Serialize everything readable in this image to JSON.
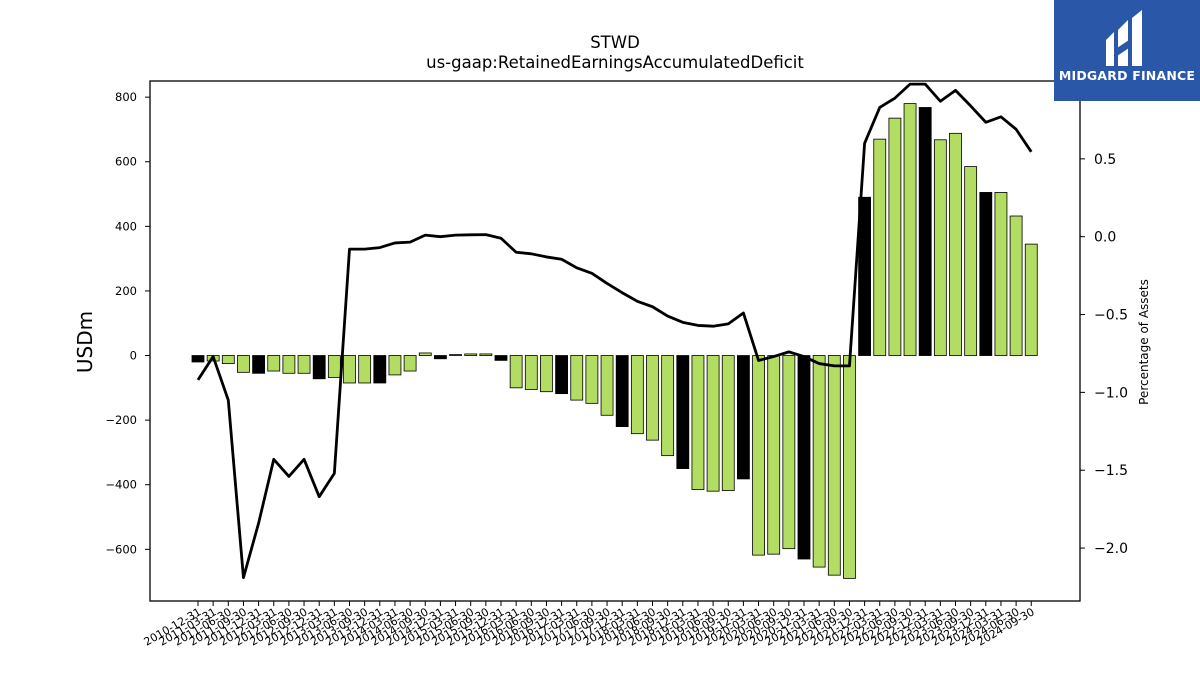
{
  "chart_data": {
    "type": "bar",
    "title": "STWD",
    "subtitle": "us-gaap:RetainedEarningsAccumulatedDeficit",
    "ylabel": "USDm",
    "y2label": "Percentage of Assets",
    "ylim": [
      -760,
      850
    ],
    "y2lim": [
      -2.34,
      1.0
    ],
    "yticks": [
      -600,
      -400,
      -200,
      0,
      200,
      400,
      600,
      800
    ],
    "y2ticks": [
      -2.0,
      -1.5,
      -1.0,
      -0.5,
      0.0,
      0.5,
      1.0
    ],
    "yticklabels": [
      "−600",
      "−400",
      "−200",
      "0",
      "200",
      "400",
      "600",
      "800"
    ],
    "y2ticklabels": [
      "−2.0",
      "−1.5",
      "−1.0",
      "−0.5",
      "0.0",
      "0.5",
      "1.0"
    ],
    "colors": {
      "bar_green": "#b2dc62",
      "bar_black": "#000000",
      "line": "#000000"
    },
    "categories": [
      "2010-12-31",
      "2011-03-31",
      "2011-06-30",
      "2011-09-30",
      "2011-12-31",
      "2012-03-31",
      "2012-06-30",
      "2012-09-30",
      "2012-12-31",
      "2013-03-31",
      "2013-06-30",
      "2013-09-30",
      "2013-12-31",
      "2014-03-31",
      "2014-06-30",
      "2014-09-30",
      "2014-12-31",
      "2015-03-31",
      "2015-06-30",
      "2015-09-30",
      "2015-12-31",
      "2016-03-31",
      "2016-06-30",
      "2016-09-30",
      "2016-12-31",
      "2017-03-31",
      "2017-06-30",
      "2017-09-30",
      "2017-12-31",
      "2018-03-31",
      "2018-06-30",
      "2018-09-30",
      "2018-12-31",
      "2019-03-31",
      "2019-06-30",
      "2019-09-30",
      "2019-12-31",
      "2020-03-31",
      "2020-06-30",
      "2020-09-30",
      "2020-12-31",
      "2021-03-31",
      "2021-06-30",
      "2021-09-30",
      "2021-12-31",
      "2022-03-31",
      "2022-06-30",
      "2022-09-30",
      "2022-12-31",
      "2023-03-31",
      "2023-06-30",
      "2023-09-30",
      "2023-12-31",
      "2024-03-31",
      "2024-06-30",
      "2024-09-30"
    ],
    "xticklabels": [
      "2010-12-31",
      "2011-03-31",
      "2011-06-30",
      "2011-09-30",
      "2011-12-31",
      "2012-03-31",
      "2012-06-30",
      "2012-09-30",
      "2012-12-31",
      "2013-03-31",
      "2013-06-30",
      "2013-09-30",
      "2013-12-31",
      "2014-03-31",
      "2014-06-30",
      "2014-09-30",
      "2014-12-31",
      "2015-03-31",
      "2015-06-30",
      "2015-09-30",
      "2015-12-31",
      "2016-03-31",
      "2016-06-30",
      "2016-09-30",
      "2016-12-31",
      "2017-03-31",
      "2017-06-30",
      "2017-09-30",
      "2017-12-31",
      "2018-03-31",
      "2018-06-30",
      "2018-09-30",
      "2018-12-31",
      "2019-03-31",
      "2019-06-30",
      "2019-09-30",
      "2019-12-31",
      "2020-03-31",
      "2020-06-30",
      "2020-09-30",
      "2020-12-31",
      "2021-03-31",
      "2021-06-30",
      "2021-09-30",
      "2021-12-31",
      "2022-03-31",
      "2022-06-30",
      "2022-09-30",
      "2022-12-31",
      "2023-03-31",
      "2023-06-30",
      "2023-09-30",
      "2023-12-31",
      "2024-03-31",
      "2024-06-30",
      "2024-09-30"
    ],
    "series": [
      {
        "type": "bar",
        "values": [
          -20,
          -17,
          -25,
          -52,
          -55,
          -48,
          -55,
          -55,
          -72,
          -68,
          -85,
          -85,
          -85,
          -60,
          -48,
          8,
          -10,
          3,
          5,
          5,
          -15,
          -100,
          -105,
          -112,
          -118,
          -138,
          -148,
          -185,
          -220,
          -242,
          -262,
          -310,
          -350,
          -415,
          -420,
          -418,
          -382,
          -618,
          -615,
          -598,
          -630,
          -655,
          -680,
          -690,
          490,
          670,
          735,
          780,
          768,
          668,
          688,
          585,
          505,
          505,
          432,
          345
        ],
        "bar_colors": [
          "black",
          "green",
          "green",
          "green",
          "black",
          "green",
          "green",
          "green",
          "black",
          "green",
          "green",
          "green",
          "black",
          "green",
          "green",
          "green",
          "black",
          "green",
          "green",
          "green",
          "black",
          "green",
          "green",
          "green",
          "black",
          "green",
          "green",
          "green",
          "black",
          "green",
          "green",
          "green",
          "black",
          "green",
          "green",
          "green",
          "black",
          "green",
          "green",
          "green",
          "black",
          "green",
          "green",
          "green",
          "black",
          "green",
          "green",
          "green",
          "black",
          "green",
          "green",
          "green",
          "black",
          "green",
          "green",
          "green"
        ]
      },
      {
        "type": "line",
        "axis": "right",
        "values": [
          -0.92,
          -0.77,
          -1.05,
          -2.19,
          -1.84,
          -1.43,
          -1.54,
          -1.43,
          -1.67,
          -1.52,
          -0.08,
          -0.08,
          -0.07,
          -0.04,
          -0.035,
          0.01,
          0.0,
          0.01,
          0.012,
          0.013,
          -0.01,
          -0.1,
          -0.11,
          -0.13,
          -0.145,
          -0.2,
          -0.235,
          -0.3,
          -0.36,
          -0.415,
          -0.45,
          -0.51,
          -0.55,
          -0.57,
          -0.575,
          -0.56,
          -0.49,
          -0.795,
          -0.77,
          -0.74,
          -0.77,
          -0.815,
          -0.83,
          -0.83,
          0.6,
          0.83,
          0.89,
          0.98,
          0.98,
          0.87,
          0.94,
          0.84,
          0.735,
          0.77,
          0.69,
          0.545
        ]
      }
    ]
  },
  "logo": {
    "text": "MIDGARD FINANCE",
    "icon": "midgard-logo-icon"
  }
}
